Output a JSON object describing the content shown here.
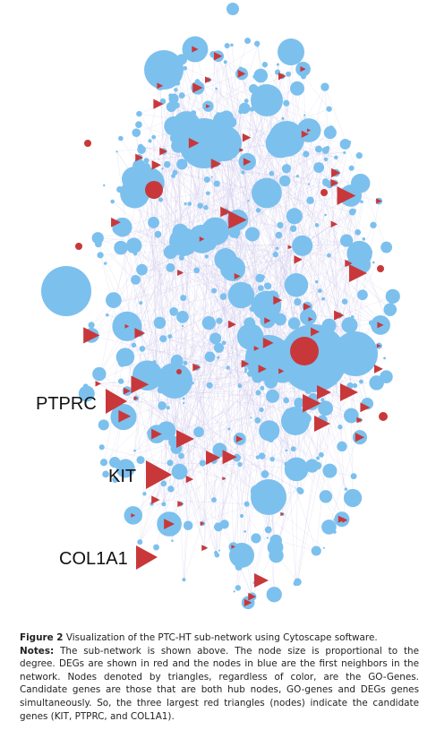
{
  "figure": {
    "labels": [
      "PTPRC",
      "KIT",
      "COL1A1"
    ]
  },
  "caption": {
    "label": "Figure 2",
    "title": "Visualization of the PTC-HT sub-network using Cytoscape software.",
    "notes_label": "Notes:",
    "notes": "The sub-network is shown above. The node size is proportional to the degree. DEGs are shown in red and the nodes in blue are the first neighbors in the network. Nodes denoted by triangles, regardless of color, are the GO-Genes. Candidate genes are those that are both hub nodes, GO-genes and DEGs genes simultaneously. So, the three largest red triangles (nodes) indicate the candidate genes (KIT, PTPRC, and COL1A1)."
  }
}
